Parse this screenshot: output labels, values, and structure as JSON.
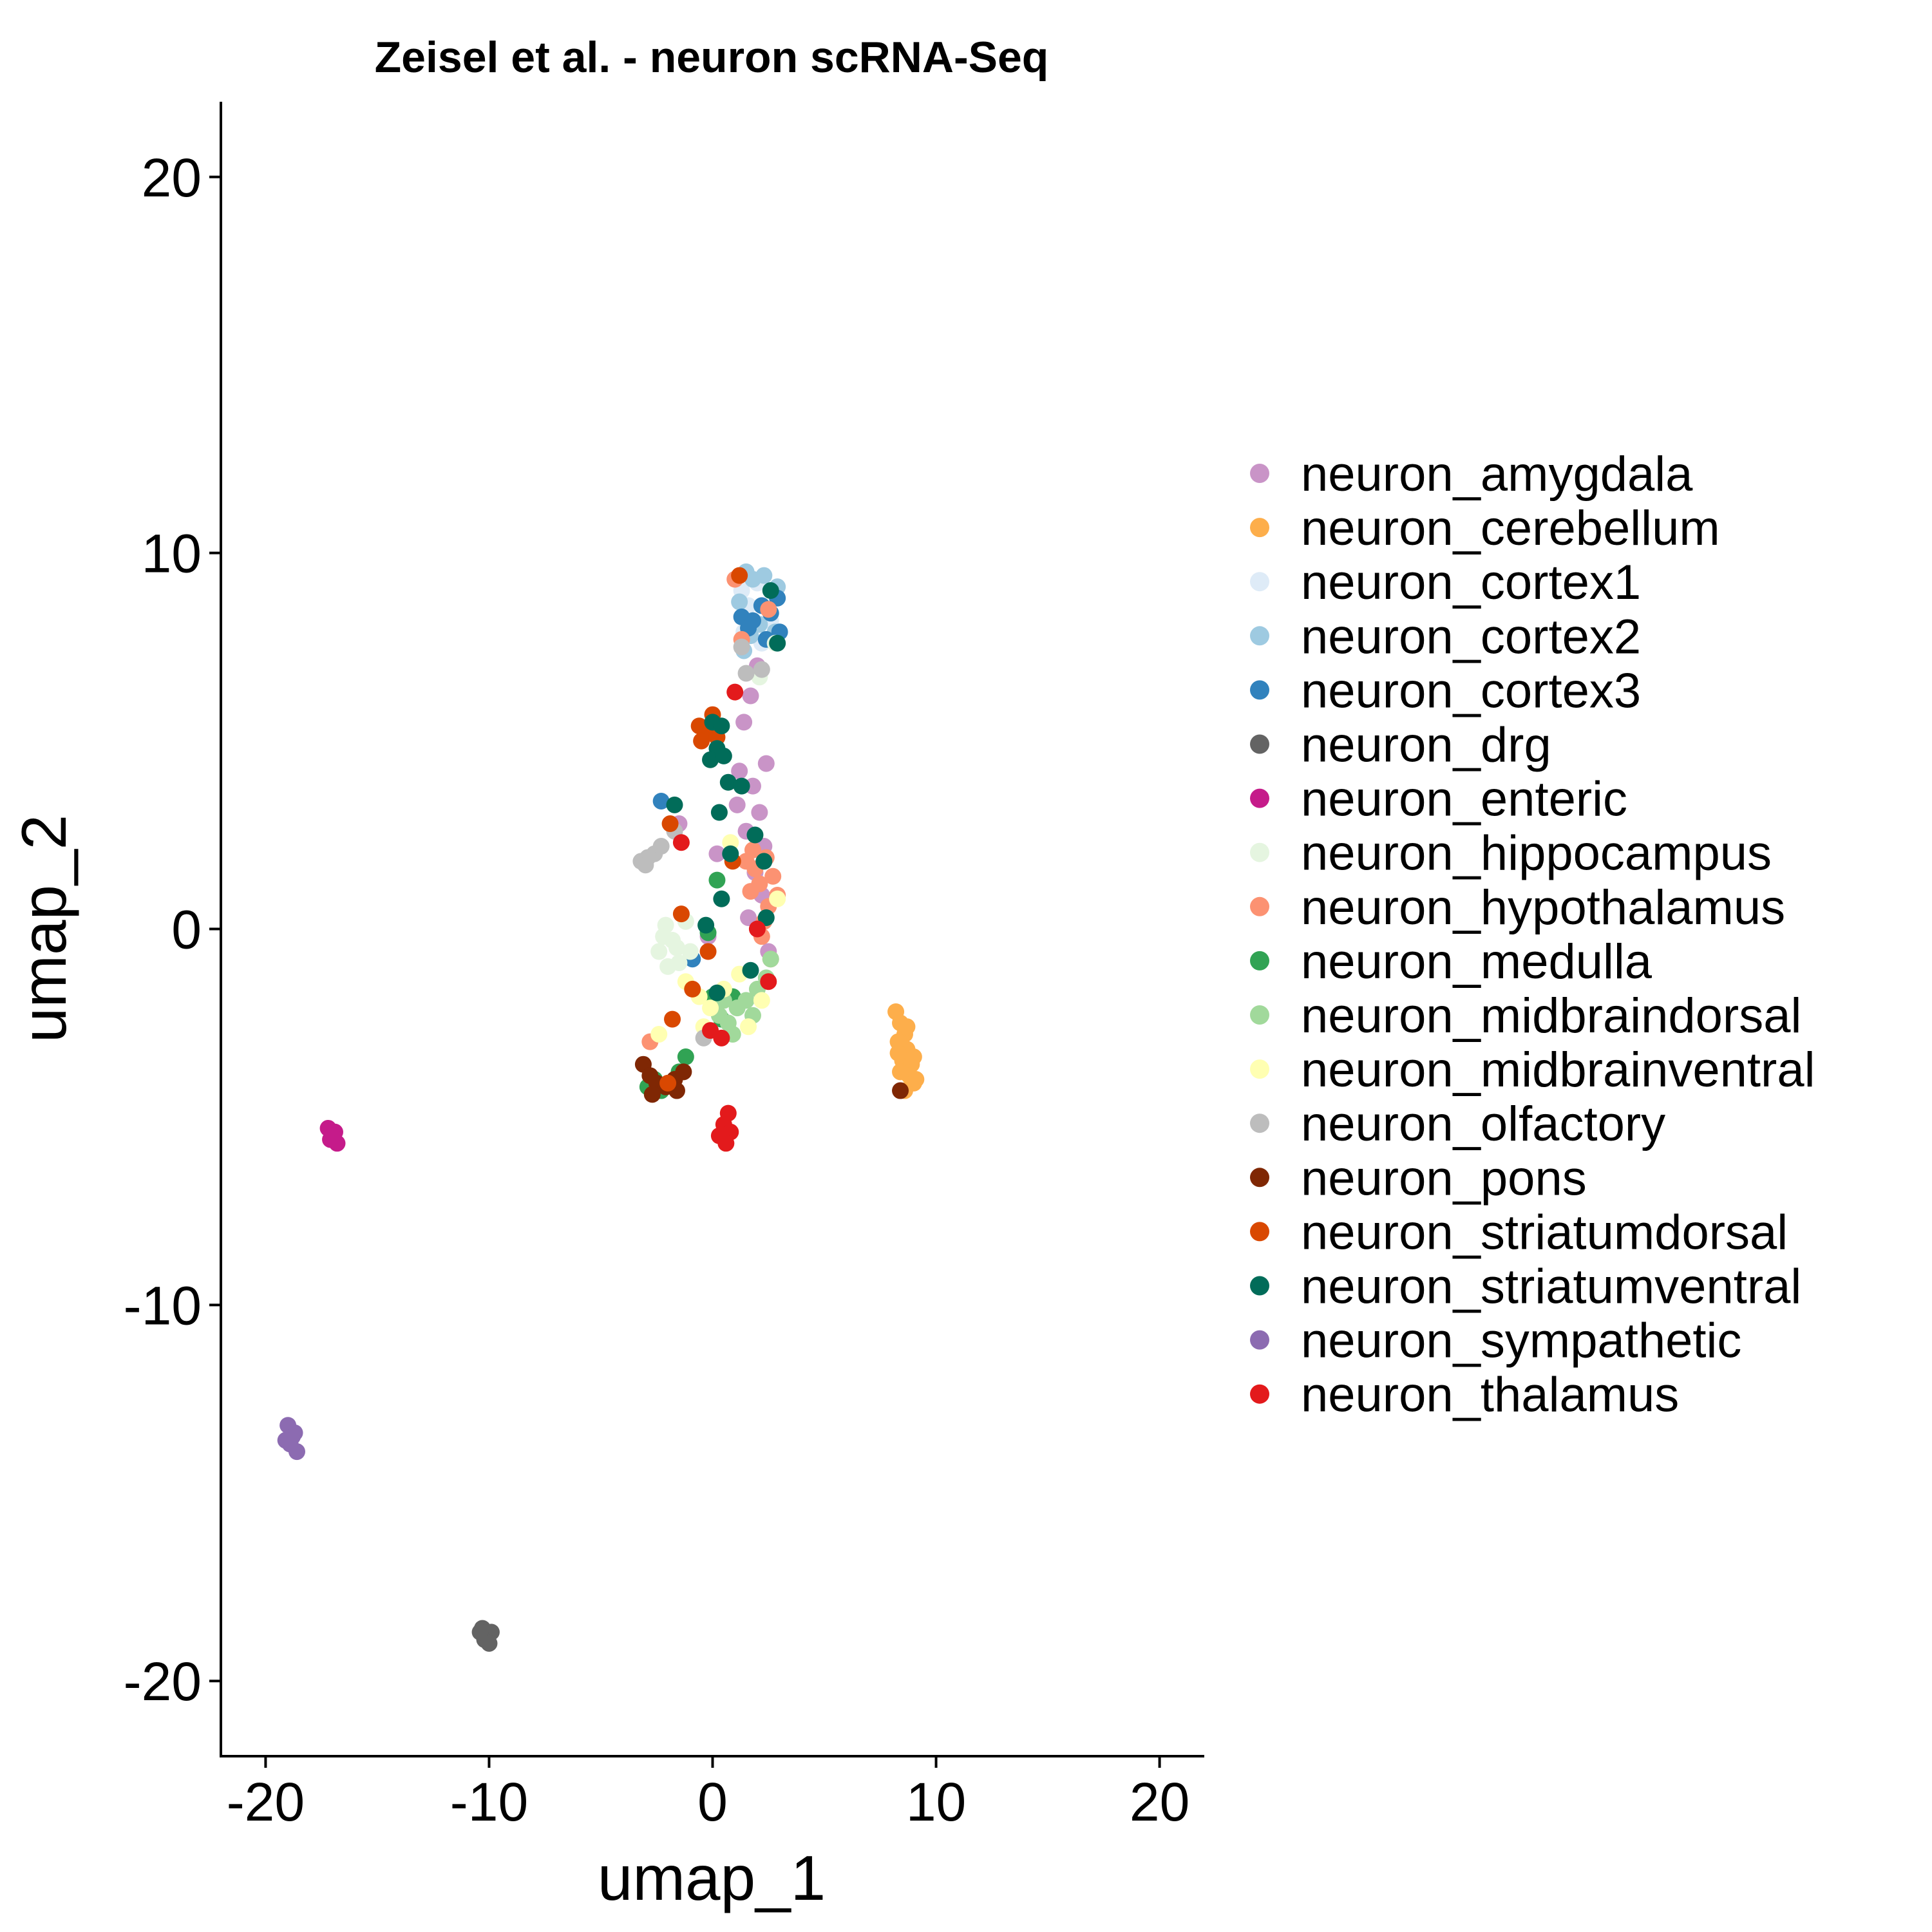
{
  "chart_data": {
    "type": "scatter",
    "title": "Zeisel et al. - neuron scRNA-Seq",
    "xlabel": "umap_1",
    "ylabel": "umap_2",
    "xlim": [
      -22,
      22
    ],
    "ylim": [
      -22,
      22
    ],
    "xticks": [
      -20,
      -10,
      0,
      10,
      20
    ],
    "yticks": [
      -20,
      -10,
      0,
      10,
      20
    ],
    "xtick_labels": [
      "-20",
      "-10",
      "0",
      "10",
      "20"
    ],
    "ytick_labels": [
      "-20",
      "-10",
      "0",
      "10",
      "20"
    ],
    "grid": false,
    "legend_position": "right",
    "series": [
      {
        "name": "neuron_amygdala",
        "color": "#C994C7",
        "points": [
          [
            1.2,
            4.2
          ],
          [
            1.8,
            3.8
          ],
          [
            2.1,
            3.1
          ],
          [
            1.5,
            2.6
          ],
          [
            2.3,
            2.2
          ],
          [
            1.9,
            1.5
          ],
          [
            2.2,
            0.9
          ],
          [
            1.6,
            0.3
          ],
          [
            -0.2,
            -0.2
          ],
          [
            2.5,
            -0.6
          ],
          [
            1.4,
            5.5
          ],
          [
            1.7,
            6.2
          ],
          [
            2.0,
            7.0
          ],
          [
            -1.5,
            2.8
          ],
          [
            0.2,
            2.0
          ],
          [
            2.4,
            4.4
          ],
          [
            1.1,
            3.3
          ]
        ]
      },
      {
        "name": "neuron_cerebellum",
        "color": "#FDAE4B",
        "points": [
          [
            8.2,
            -2.2
          ],
          [
            8.4,
            -2.5
          ],
          [
            8.6,
            -2.8
          ],
          [
            8.3,
            -3.0
          ],
          [
            8.7,
            -3.2
          ],
          [
            8.5,
            -3.5
          ],
          [
            8.9,
            -3.6
          ],
          [
            8.4,
            -3.8
          ],
          [
            8.8,
            -3.9
          ],
          [
            9.0,
            -4.1
          ],
          [
            8.6,
            -4.3
          ],
          [
            9.1,
            -4.0
          ],
          [
            8.3,
            -3.3
          ],
          [
            8.7,
            -2.6
          ],
          [
            9.0,
            -3.4
          ]
        ]
      },
      {
        "name": "neuron_cortex1",
        "color": "#DEEBF7",
        "points": [
          [
            1.3,
            9.0
          ],
          [
            2.0,
            9.2
          ],
          [
            1.6,
            8.6
          ],
          [
            2.6,
            8.2
          ],
          [
            2.2,
            7.6
          ],
          [
            1.4,
            7.9
          ]
        ]
      },
      {
        "name": "neuron_cortex2",
        "color": "#9ECAE1",
        "points": [
          [
            1.5,
            9.5
          ],
          [
            1.8,
            9.3
          ],
          [
            2.3,
            9.4
          ],
          [
            2.9,
            9.1
          ],
          [
            1.2,
            8.7
          ],
          [
            1.7,
            7.8
          ],
          [
            2.5,
            8.5
          ],
          [
            2.8,
            7.9
          ],
          [
            1.4,
            7.4
          ],
          [
            2.1,
            8.1
          ]
        ]
      },
      {
        "name": "neuron_cortex3",
        "color": "#3182BD",
        "points": [
          [
            1.3,
            8.3
          ],
          [
            1.8,
            8.2
          ],
          [
            2.2,
            8.6
          ],
          [
            2.6,
            8.4
          ],
          [
            2.9,
            8.8
          ],
          [
            3.0,
            7.9
          ],
          [
            2.4,
            7.7
          ],
          [
            1.6,
            8.0
          ],
          [
            -2.3,
            3.4
          ],
          [
            -0.9,
            -0.8
          ]
        ]
      },
      {
        "name": "neuron_drg",
        "color": "#636363",
        "points": [
          [
            -10.3,
            -18.6
          ],
          [
            -10.1,
            -18.8
          ],
          [
            -10.2,
            -18.9
          ],
          [
            -9.9,
            -18.7
          ],
          [
            -10.0,
            -19.0
          ],
          [
            -10.4,
            -18.7
          ]
        ]
      },
      {
        "name": "neuron_enteric",
        "color": "#C51B8A",
        "points": [
          [
            -17.2,
            -5.3
          ],
          [
            -16.9,
            -5.4
          ],
          [
            -17.1,
            -5.6
          ],
          [
            -16.8,
            -5.7
          ],
          [
            -17.0,
            -5.5
          ]
        ]
      },
      {
        "name": "neuron_hippocampus",
        "color": "#E5F5E0",
        "points": [
          [
            -2.1,
            0.1
          ],
          [
            -1.8,
            -0.3
          ],
          [
            -2.4,
            -0.6
          ],
          [
            -1.5,
            -0.9
          ],
          [
            -2.0,
            -1.0
          ],
          [
            -1.2,
            0.2
          ],
          [
            -2.2,
            -0.2
          ],
          [
            -1.6,
            -0.5
          ],
          [
            2.8,
            7.6
          ],
          [
            2.1,
            6.7
          ],
          [
            -1.0,
            -0.6
          ]
        ]
      },
      {
        "name": "neuron_hypothalamus",
        "color": "#FC9272",
        "points": [
          [
            1.5,
            1.8
          ],
          [
            1.9,
            1.6
          ],
          [
            2.4,
            1.9
          ],
          [
            2.7,
            1.4
          ],
          [
            2.1,
            1.2
          ],
          [
            1.7,
            1.0
          ],
          [
            2.9,
            0.9
          ],
          [
            2.5,
            0.6
          ],
          [
            2.2,
            -0.2
          ],
          [
            2.6,
            -0.8
          ],
          [
            1.8,
            2.1
          ],
          [
            2.3,
            0.2
          ],
          [
            -2.8,
            -3.0
          ],
          [
            1.0,
            9.3
          ],
          [
            2.5,
            8.5
          ],
          [
            1.3,
            7.7
          ]
        ]
      },
      {
        "name": "neuron_medulla",
        "color": "#31A354",
        "points": [
          [
            -2.6,
            -4.0
          ],
          [
            -2.3,
            -4.3
          ],
          [
            -1.9,
            -4.1
          ],
          [
            -1.5,
            -3.8
          ],
          [
            -2.9,
            -4.2
          ],
          [
            -1.2,
            -3.4
          ],
          [
            0.0,
            -1.8
          ],
          [
            0.4,
            -2.4
          ],
          [
            -0.2,
            -0.1
          ],
          [
            0.9,
            -1.8
          ],
          [
            0.2,
            1.3
          ]
        ]
      },
      {
        "name": "neuron_midbraindorsal",
        "color": "#A1D99B",
        "points": [
          [
            0.3,
            -2.3
          ],
          [
            0.7,
            -2.5
          ],
          [
            1.1,
            -2.1
          ],
          [
            1.5,
            -1.9
          ],
          [
            2.0,
            -1.6
          ],
          [
            2.4,
            -1.3
          ],
          [
            0.9,
            -2.8
          ],
          [
            1.8,
            -2.3
          ],
          [
            2.6,
            -0.8
          ],
          [
            0.5,
            -1.9
          ]
        ]
      },
      {
        "name": "neuron_midbrainventral",
        "color": "#FFFFB2",
        "points": [
          [
            -1.2,
            -1.4
          ],
          [
            -0.6,
            -1.8
          ],
          [
            -0.1,
            -2.1
          ],
          [
            0.5,
            -1.6
          ],
          [
            1.2,
            -1.2
          ],
          [
            1.6,
            -2.6
          ],
          [
            2.2,
            -1.9
          ],
          [
            -2.4,
            -2.8
          ],
          [
            0.8,
            2.3
          ],
          [
            2.9,
            0.8
          ],
          [
            -0.4,
            -2.6
          ]
        ]
      },
      {
        "name": "neuron_olfactory",
        "color": "#BDBDBD",
        "points": [
          [
            -3.2,
            1.8
          ],
          [
            -2.9,
            1.9
          ],
          [
            -2.6,
            2.0
          ],
          [
            -3.0,
            1.7
          ],
          [
            -2.3,
            2.2
          ],
          [
            -1.7,
            2.6
          ],
          [
            -0.4,
            -2.9
          ],
          [
            1.3,
            7.5
          ],
          [
            1.5,
            6.8
          ],
          [
            2.2,
            6.9
          ]
        ]
      },
      {
        "name": "neuron_pons",
        "color": "#7F2704",
        "points": [
          [
            -3.1,
            -3.6
          ],
          [
            -2.8,
            -3.9
          ],
          [
            -2.5,
            -4.1
          ],
          [
            -2.1,
            -4.2
          ],
          [
            -1.7,
            -4.0
          ],
          [
            -1.3,
            -3.8
          ],
          [
            -1.6,
            -4.3
          ],
          [
            -2.7,
            -4.4
          ],
          [
            8.4,
            -4.3
          ]
        ]
      },
      {
        "name": "neuron_striatumdorsal",
        "color": "#D94801",
        "points": [
          [
            -0.6,
            5.4
          ],
          [
            -0.3,
            5.2
          ],
          [
            0.0,
            5.7
          ],
          [
            -0.5,
            5.0
          ],
          [
            0.2,
            5.1
          ],
          [
            -1.9,
            2.8
          ],
          [
            -1.4,
            0.4
          ],
          [
            -0.9,
            -1.6
          ],
          [
            -0.2,
            -0.6
          ],
          [
            -1.8,
            -2.4
          ],
          [
            1.2,
            9.4
          ],
          [
            0.9,
            1.8
          ],
          [
            -2.0,
            -4.1
          ]
        ]
      },
      {
        "name": "neuron_striatumventral",
        "color": "#016C59",
        "points": [
          [
            0.0,
            5.5
          ],
          [
            0.4,
            5.4
          ],
          [
            0.2,
            4.8
          ],
          [
            -0.1,
            4.5
          ],
          [
            0.5,
            4.6
          ],
          [
            0.7,
            3.9
          ],
          [
            1.3,
            3.8
          ],
          [
            0.3,
            3.1
          ],
          [
            1.9,
            2.5
          ],
          [
            2.3,
            1.8
          ],
          [
            0.8,
            2.0
          ],
          [
            -1.7,
            3.3
          ],
          [
            -0.3,
            0.1
          ],
          [
            2.4,
            0.3
          ],
          [
            1.7,
            -1.1
          ],
          [
            0.2,
            -1.7
          ],
          [
            2.6,
            9.0
          ],
          [
            2.9,
            7.6
          ],
          [
            0.4,
            0.8
          ]
        ]
      },
      {
        "name": "neuron_sympathetic",
        "color": "#8C6BB1",
        "points": [
          [
            -19.0,
            -13.2
          ],
          [
            -18.7,
            -13.4
          ],
          [
            -18.9,
            -13.7
          ],
          [
            -18.6,
            -13.9
          ],
          [
            -18.8,
            -13.5
          ],
          [
            -19.1,
            -13.6
          ]
        ]
      },
      {
        "name": "neuron_thalamus",
        "color": "#E31A1C",
        "points": [
          [
            0.7,
            -4.9
          ],
          [
            0.5,
            -5.2
          ],
          [
            0.8,
            -5.4
          ],
          [
            0.3,
            -5.5
          ],
          [
            0.6,
            -5.7
          ],
          [
            1.0,
            6.3
          ],
          [
            -1.4,
            2.3
          ],
          [
            2.0,
            0.0
          ],
          [
            -0.1,
            -2.7
          ],
          [
            0.4,
            -2.9
          ],
          [
            2.5,
            -1.4
          ]
        ]
      }
    ]
  }
}
